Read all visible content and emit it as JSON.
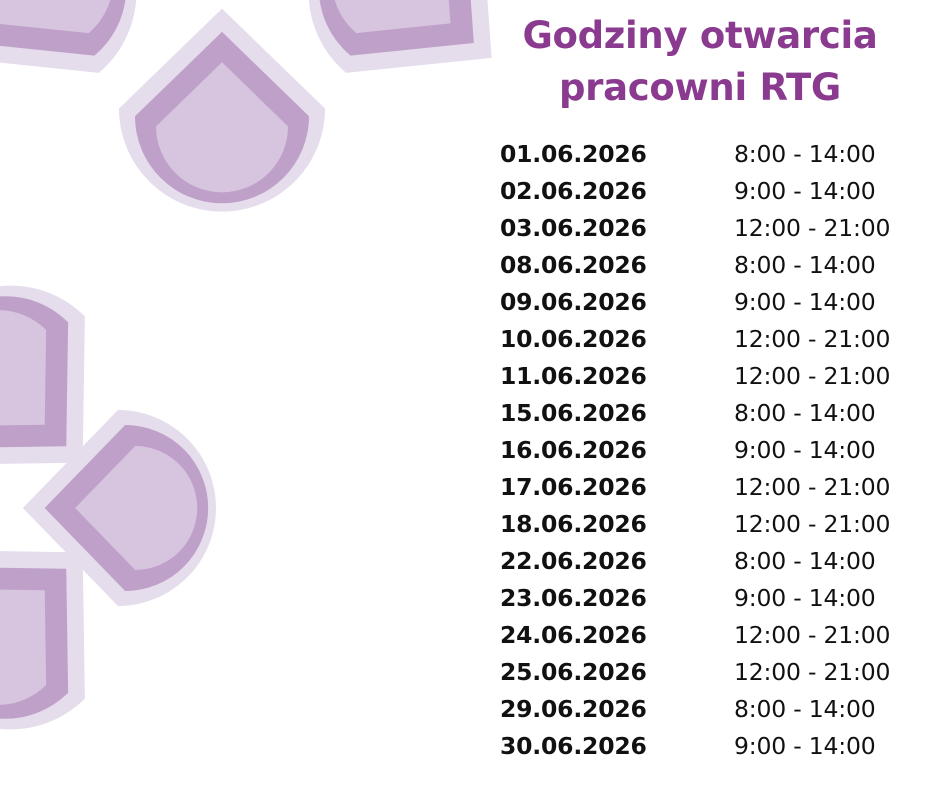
{
  "title": {
    "line1": "Godziny otwarcia",
    "line2": "pracowni RTG"
  },
  "colors": {
    "title": "#8a3a8f",
    "petal_outer": "#e5dcec",
    "petal_ring": "#bfa0c9",
    "petal_inner": "#d7c4df",
    "text": "#111111"
  },
  "schedule": [
    {
      "date": "01.06.2026",
      "hours": "8:00 - 14:00"
    },
    {
      "date": "02.06.2026",
      "hours": "9:00 - 14:00"
    },
    {
      "date": "03.06.2026",
      "hours": "12:00 - 21:00"
    },
    {
      "date": "08.06.2026",
      "hours": "8:00 - 14:00"
    },
    {
      "date": "09.06.2026",
      "hours": "9:00 - 14:00"
    },
    {
      "date": "10.06.2026",
      "hours": "12:00 - 21:00"
    },
    {
      "date": "11.06.2026",
      "hours": "12:00 - 21:00"
    },
    {
      "date": "15.06.2026",
      "hours": "8:00 - 14:00"
    },
    {
      "date": "16.06.2026",
      "hours": "9:00 - 14:00"
    },
    {
      "date": "17.06.2026",
      "hours": "12:00 - 21:00"
    },
    {
      "date": "18.06.2026",
      "hours": "12:00 - 21:00"
    },
    {
      "date": "22.06.2026",
      "hours": "8:00 - 14:00"
    },
    {
      "date": "23.06.2026",
      "hours": "9:00 - 14:00"
    },
    {
      "date": "24.06.2026",
      "hours": "12:00 - 21:00"
    },
    {
      "date": "25.06.2026",
      "hours": "12:00 - 21:00"
    },
    {
      "date": "29.06.2026",
      "hours": "8:00 - 14:00"
    },
    {
      "date": "30.06.2026",
      "hours": "9:00 - 14:00"
    }
  ]
}
